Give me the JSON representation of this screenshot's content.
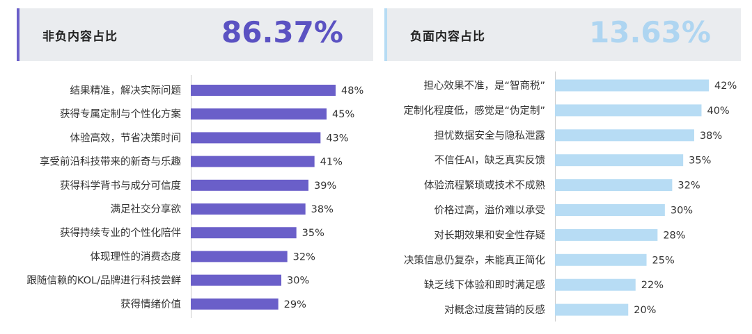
{
  "colors": {
    "positive": "#6A5FC9",
    "negative": "#B7DCF4",
    "positive_value": "#5B52C2",
    "negative_value": "#AED5F1"
  },
  "positive": {
    "title": "非负内容占比",
    "value": "86.37%"
  },
  "negative": {
    "title": "负面内容占比",
    "value": "13.63%"
  },
  "chart_data": [
    {
      "type": "bar",
      "orientation": "horizontal",
      "title": "",
      "categories": [
        "结果精准，解决实际问题",
        "获得专属定制与个性化方案",
        "体验高效，节省决策时间",
        "享受前沿科技带来的新奇与乐趣",
        "获得科学背书与成分可信度",
        "满足社交分享欲",
        "获得持续专业的个性化陪伴",
        "体现理性的消费态度",
        "跟随信赖的KOL/品牌进行科技尝鲜",
        "获得情绪价值"
      ],
      "values": [
        48,
        45,
        43,
        41,
        39,
        38,
        35,
        32,
        30,
        29
      ],
      "value_labels": [
        "48%",
        "45%",
        "43%",
        "41%",
        "39%",
        "38%",
        "35%",
        "32%",
        "30%",
        "29%"
      ],
      "unit": "%",
      "xlim": [
        0,
        100
      ],
      "grid": false,
      "color": "#6A5FC9"
    },
    {
      "type": "bar",
      "orientation": "horizontal",
      "title": "",
      "categories": [
        "担心效果不准，是“智商税”",
        "定制化程度低，感觉是“伪定制”",
        "担忧数据安全与隐私泄露",
        "不信任AI，缺乏真实反馈",
        "体验流程繁琐或技术不成熟",
        "价格过高，溢价难以承受",
        "对长期效果和安全性存疑",
        "决策信息仍复杂，未能真正简化",
        "缺乏线下体验和即时满足感",
        "对概念过度营销的反感"
      ],
      "values": [
        42,
        40,
        38,
        35,
        32,
        30,
        28,
        25,
        22,
        20
      ],
      "value_labels": [
        "42%",
        "40%",
        "38%",
        "35%",
        "32%",
        "30%",
        "28%",
        "25%",
        "22%",
        "20%"
      ],
      "unit": "%",
      "xlim": [
        0,
        100
      ],
      "grid": false,
      "color": "#B7DCF4"
    }
  ]
}
